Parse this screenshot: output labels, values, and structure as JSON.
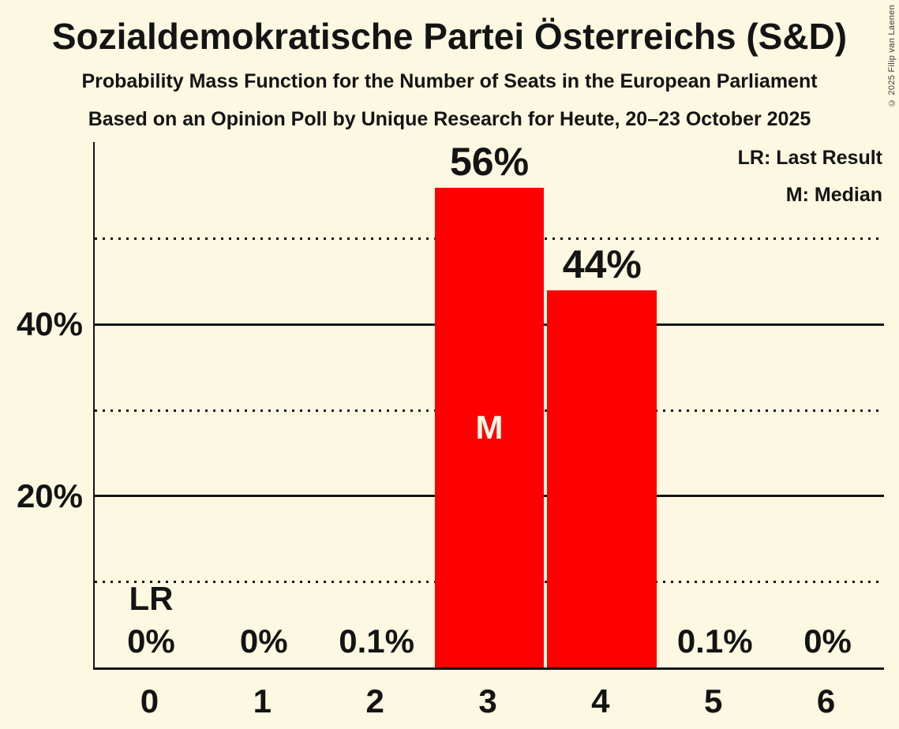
{
  "title": "Sozialdemokratische Partei Österreichs (S&D)",
  "subtitle_pmf": "Probability Mass Function for the Number of Seats in the European Parliament",
  "subtitle_poll": "Based on an Opinion Poll by Unique Research for Heute, 20–23 October 2025",
  "legend": {
    "last_result": "LR: Last Result",
    "median": "M: Median"
  },
  "copyright": "© 2025 Filip van Laenen",
  "colors": {
    "background": "#FCF8E2",
    "bar": "#FF0000",
    "text": "#141414",
    "median_letter": "#FCF8E2"
  },
  "chart_data": {
    "type": "bar",
    "title": "Sozialdemokratische Partei Österreichs (S&D)",
    "categories": [
      "0",
      "1",
      "2",
      "3",
      "4",
      "5",
      "6"
    ],
    "values": [
      0,
      0,
      0.1,
      56,
      44,
      0.1,
      0
    ],
    "value_labels": [
      "0%",
      "0%",
      "0.1%",
      "56%",
      "44%",
      "0.1%",
      "0%"
    ],
    "ylim": [
      0,
      61.3
    ],
    "yticks": [
      {
        "pct": 20,
        "label": "20%"
      },
      {
        "pct": 40,
        "label": "40%"
      }
    ],
    "gridlines": [
      {
        "pct": 10,
        "style": "dotted"
      },
      {
        "pct": 20,
        "style": "solid"
      },
      {
        "pct": 30,
        "style": "dotted"
      },
      {
        "pct": 40,
        "style": "solid"
      },
      {
        "pct": 50,
        "style": "dotted"
      }
    ],
    "legend_position": "top-right",
    "median": {
      "category": "3",
      "label": "M"
    },
    "last_result": {
      "category": "0",
      "label": "LR"
    }
  }
}
